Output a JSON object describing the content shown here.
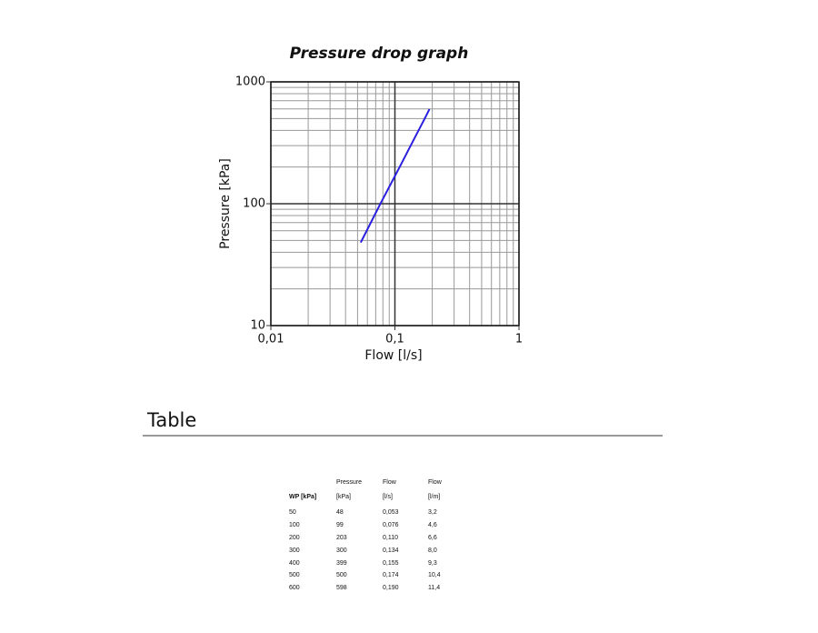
{
  "chart_data": {
    "type": "line",
    "title": "Pressure drop graph",
    "x_label": "Flow [l/s]",
    "y_label": "Pressure [kPa]",
    "xscale": "log",
    "yscale": "log",
    "grid": true,
    "xlim": [
      0.01,
      1
    ],
    "ylim": [
      10,
      1000
    ],
    "xticks": [
      {
        "value": 0.01,
        "label": "0,01"
      },
      {
        "value": 0.1,
        "label": "0,1"
      },
      1
    ],
    "yticks": [
      10,
      100,
      1000
    ],
    "series": [
      {
        "color": "#2a1fe0",
        "x": [
          0.053,
          0.076,
          0.11,
          0.134,
          0.155,
          0.174,
          0.19
        ],
        "values": [
          48,
          99,
          203,
          300,
          399,
          500,
          598
        ]
      }
    ]
  },
  "section_title": "Table",
  "table": {
    "headers": [
      "Pressure",
      "Flow",
      "Flow"
    ],
    "units": [
      "WP [kPa]",
      "[kPa]",
      "[l/s]",
      "[l/m]"
    ],
    "rows": [
      [
        "50",
        "48",
        "0,053",
        "3,2"
      ],
      [
        "100",
        "99",
        "0,076",
        "4,6"
      ],
      [
        "200",
        "203",
        "0,110",
        "6,6"
      ],
      [
        "300",
        "300",
        "0,134",
        "8,0"
      ],
      [
        "400",
        "399",
        "0,155",
        "9,3"
      ],
      [
        "500",
        "500",
        "0,174",
        "10,4"
      ],
      [
        "600",
        "598",
        "0,190",
        "11,4"
      ]
    ]
  }
}
